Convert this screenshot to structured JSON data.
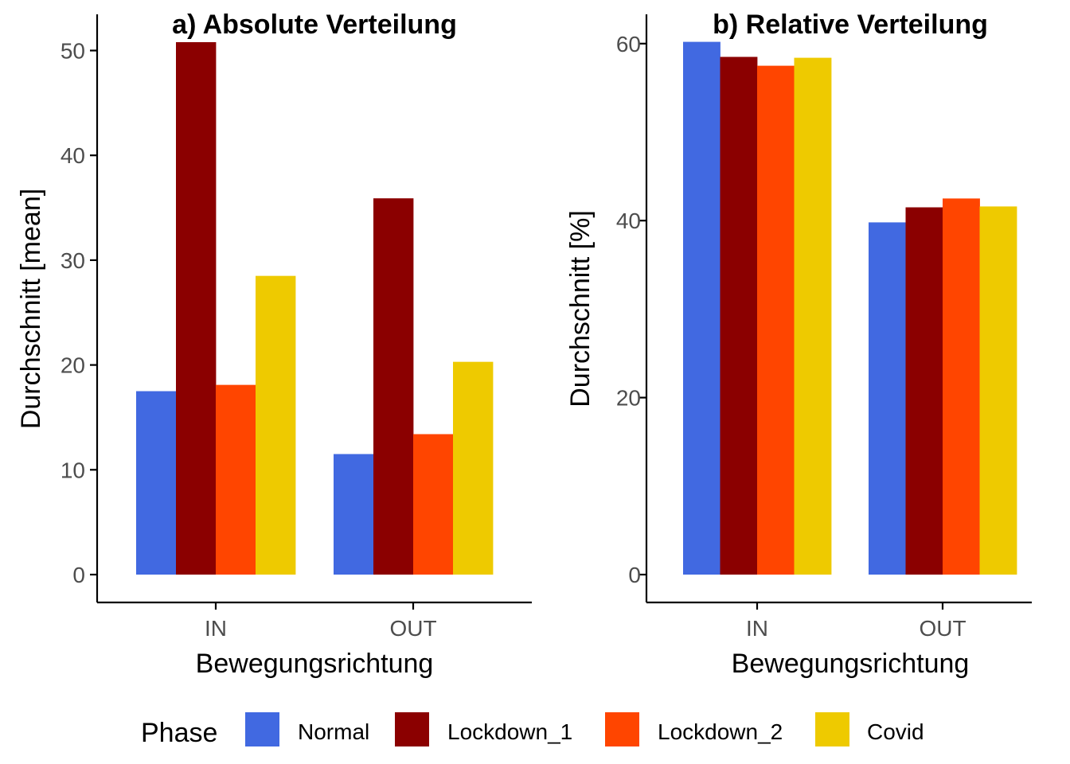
{
  "chart_data": [
    {
      "type": "bar",
      "title": "a) Absolute Verteilung",
      "xlabel": "Bewegungsrichtung",
      "ylabel": "Durchschnitt [mean]",
      "categories": [
        "IN",
        "OUT"
      ],
      "ylim": [
        0,
        52
      ],
      "yticks": [
        0,
        10,
        20,
        30,
        40,
        50
      ],
      "grid": false,
      "series": [
        {
          "name": "Normal",
          "color": "#4169E1",
          "values": [
            17.5,
            11.5
          ]
        },
        {
          "name": "Lockdown_1",
          "color": "#8B0000",
          "values": [
            50.8,
            35.9
          ]
        },
        {
          "name": "Lockdown_2",
          "color": "#FF4500",
          "values": [
            18.1,
            13.4
          ]
        },
        {
          "name": "Covid",
          "color": "#EECA00",
          "values": [
            28.5,
            20.3
          ]
        }
      ]
    },
    {
      "type": "bar",
      "title": "b) Relative Verteilung",
      "xlabel": "Bewegungsrichtung",
      "ylabel": "Durchschnitt [%]",
      "categories": [
        "IN",
        "OUT"
      ],
      "ylim": [
        0,
        61
      ],
      "yticks": [
        0,
        20,
        40,
        60
      ],
      "grid": false,
      "series": [
        {
          "name": "Normal",
          "color": "#4169E1",
          "values": [
            60.2,
            39.8
          ]
        },
        {
          "name": "Lockdown_1",
          "color": "#8B0000",
          "values": [
            58.5,
            41.5
          ]
        },
        {
          "name": "Lockdown_2",
          "color": "#FF4500",
          "values": [
            57.5,
            42.5
          ]
        },
        {
          "name": "Covid",
          "color": "#EECA00",
          "values": [
            58.4,
            41.6
          ]
        }
      ]
    }
  ],
  "legend": {
    "title": "Phase",
    "position": "bottom",
    "items": [
      {
        "label": "Normal",
        "color": "#4169E1"
      },
      {
        "label": "Lockdown_1",
        "color": "#8B0000"
      },
      {
        "label": "Lockdown_2",
        "color": "#FF4500"
      },
      {
        "label": "Covid",
        "color": "#EECA00"
      }
    ]
  }
}
